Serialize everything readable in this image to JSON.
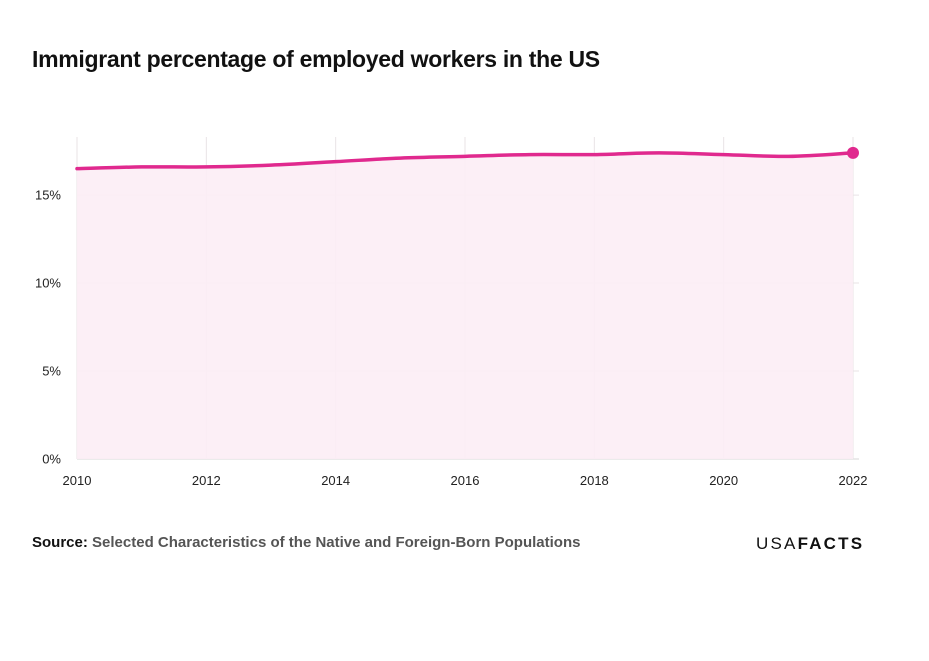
{
  "colors": {
    "series": "#e0298e",
    "area_fill": "#fcedf5",
    "grid": "#e9e3e6",
    "baseline": "#d7d7d7"
  },
  "brand": {
    "part1": "USA",
    "part2": "FACTS"
  },
  "source": {
    "label": "Source:",
    "text": "Selected Characteristics of the Native and Foreign-Born Populations"
  },
  "chart_data": {
    "type": "area",
    "title": "Immigrant percentage of employed workers in the US",
    "xlabel": "",
    "ylabel": "",
    "x": [
      2010,
      2011,
      2012,
      2013,
      2014,
      2015,
      2016,
      2017,
      2018,
      2019,
      2020,
      2021,
      2022
    ],
    "series": [
      {
        "values": [
          16.5,
          16.6,
          16.6,
          16.7,
          16.9,
          17.1,
          17.2,
          17.3,
          17.3,
          17.4,
          17.3,
          17.2,
          17.4
        ]
      }
    ],
    "xlim": [
      2010,
      2022
    ],
    "ylim": [
      0,
      18.3
    ],
    "x_ticks": [
      2010,
      2012,
      2014,
      2016,
      2018,
      2020,
      2022
    ],
    "x_tick_labels": [
      "2010",
      "2012",
      "2014",
      "2016",
      "2018",
      "2020",
      "2022"
    ],
    "y_ticks": [
      0,
      5,
      10,
      15
    ],
    "y_tick_labels": [
      "0%",
      "5%",
      "10%",
      "15%"
    ],
    "grid": true,
    "legend": "none",
    "end_marker": true
  }
}
